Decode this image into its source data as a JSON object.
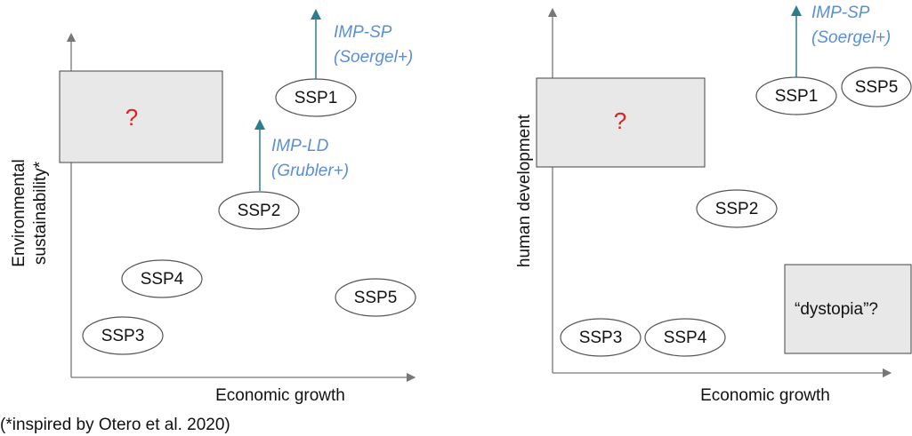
{
  "panels": [
    {
      "y_label": [
        "Environmental",
        "sustainability*"
      ],
      "x_label": "Economic growth",
      "box_label": "?",
      "nodes": [
        "SSP1",
        "SSP2",
        "SSP4",
        "SSP3",
        "SSP5"
      ],
      "annotations": [
        {
          "name": "IMP-SP",
          "source": "(Soergel+)"
        },
        {
          "name": "IMP-LD",
          "source": "(Grubler+)"
        }
      ]
    },
    {
      "y_label": [
        "human development"
      ],
      "x_label": "Economic growth",
      "box_label": "?",
      "nodes": [
        "SSP1",
        "SSP5",
        "SSP2",
        "SSP3",
        "SSP4"
      ],
      "annotations": [
        {
          "name": "IMP-SP",
          "source": "(Soergel+)"
        }
      ],
      "corner_box": "“dystopia”?"
    }
  ],
  "footnote": "(*inspired by Otero et al. 2020)"
}
